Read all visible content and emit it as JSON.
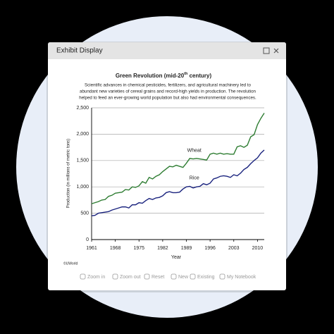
{
  "window": {
    "title": "Exhibit Display"
  },
  "footer": {
    "copyright": "©UWorld"
  },
  "toolbar": [
    "Zoom in",
    "Zoom out",
    "Reset",
    "New",
    "Existing",
    "My Notebook"
  ],
  "chart_data": {
    "type": "line",
    "title_parts": [
      "Green Revolution (mid-20",
      "th",
      " century)"
    ],
    "subtitle": [
      "Scientific advances in chemical pesticides, fertilizers, and agricultural machinery led to",
      "abundant new varieties of cereal grains and record-high yields in production. The revolution",
      "helped to feed an ever-growing world population but also had environmental consequences."
    ],
    "x_label": "Year",
    "y_label": "Production (in millions of metric tons)",
    "x": [
      1961,
      1962,
      1963,
      1964,
      1965,
      1966,
      1967,
      1968,
      1969,
      1970,
      1971,
      1972,
      1973,
      1974,
      1975,
      1976,
      1977,
      1978,
      1979,
      1980,
      1981,
      1982,
      1983,
      1984,
      1985,
      1986,
      1987,
      1988,
      1989,
      1990,
      1991,
      1992,
      1993,
      1994,
      1995,
      1996,
      1997,
      1998,
      1999,
      2000,
      2001,
      2002,
      2003,
      2004,
      2005,
      2006,
      2007,
      2008,
      2009,
      2010,
      2011,
      2012
    ],
    "series": [
      {
        "name": "Wheat",
        "color": "#2e7d32",
        "values": [
          680,
          700,
          720,
          750,
          760,
          820,
          840,
          880,
          890,
          900,
          950,
          940,
          1000,
          990,
          1020,
          1100,
          1070,
          1180,
          1150,
          1200,
          1230,
          1290,
          1340,
          1390,
          1380,
          1410,
          1390,
          1370,
          1450,
          1540,
          1530,
          1540,
          1530,
          1520,
          1510,
          1620,
          1640,
          1620,
          1640,
          1620,
          1630,
          1620,
          1620,
          1760,
          1780,
          1750,
          1790,
          1950,
          1990,
          2180,
          2300,
          2400
        ]
      },
      {
        "name": "Rice",
        "color": "#1a237e",
        "values": [
          450,
          460,
          500,
          510,
          520,
          530,
          560,
          580,
          600,
          620,
          620,
          600,
          660,
          660,
          700,
          690,
          740,
          780,
          760,
          790,
          800,
          830,
          890,
          910,
          890,
          890,
          900,
          960,
          1000,
          1010,
          980,
          1000,
          1010,
          1060,
          1040,
          1070,
          1150,
          1170,
          1200,
          1210,
          1200,
          1180,
          1230,
          1210,
          1260,
          1330,
          1370,
          1440,
          1500,
          1550,
          1640,
          1700
        ]
      }
    ],
    "xlim": [
      1961,
      2012
    ],
    "xticks": [
      1961,
      1968,
      1975,
      1982,
      1989,
      1996,
      2003,
      2010
    ],
    "ylim": [
      0,
      2500
    ],
    "yticks": [
      0,
      500,
      {
        "value": 1000,
        "label": "1,000"
      },
      {
        "value": 1500,
        "label": "1,500"
      },
      {
        "value": 2000,
        "label": "2,000"
      },
      {
        "value": 2500,
        "label": "2,500"
      }
    ],
    "grid": true
  }
}
